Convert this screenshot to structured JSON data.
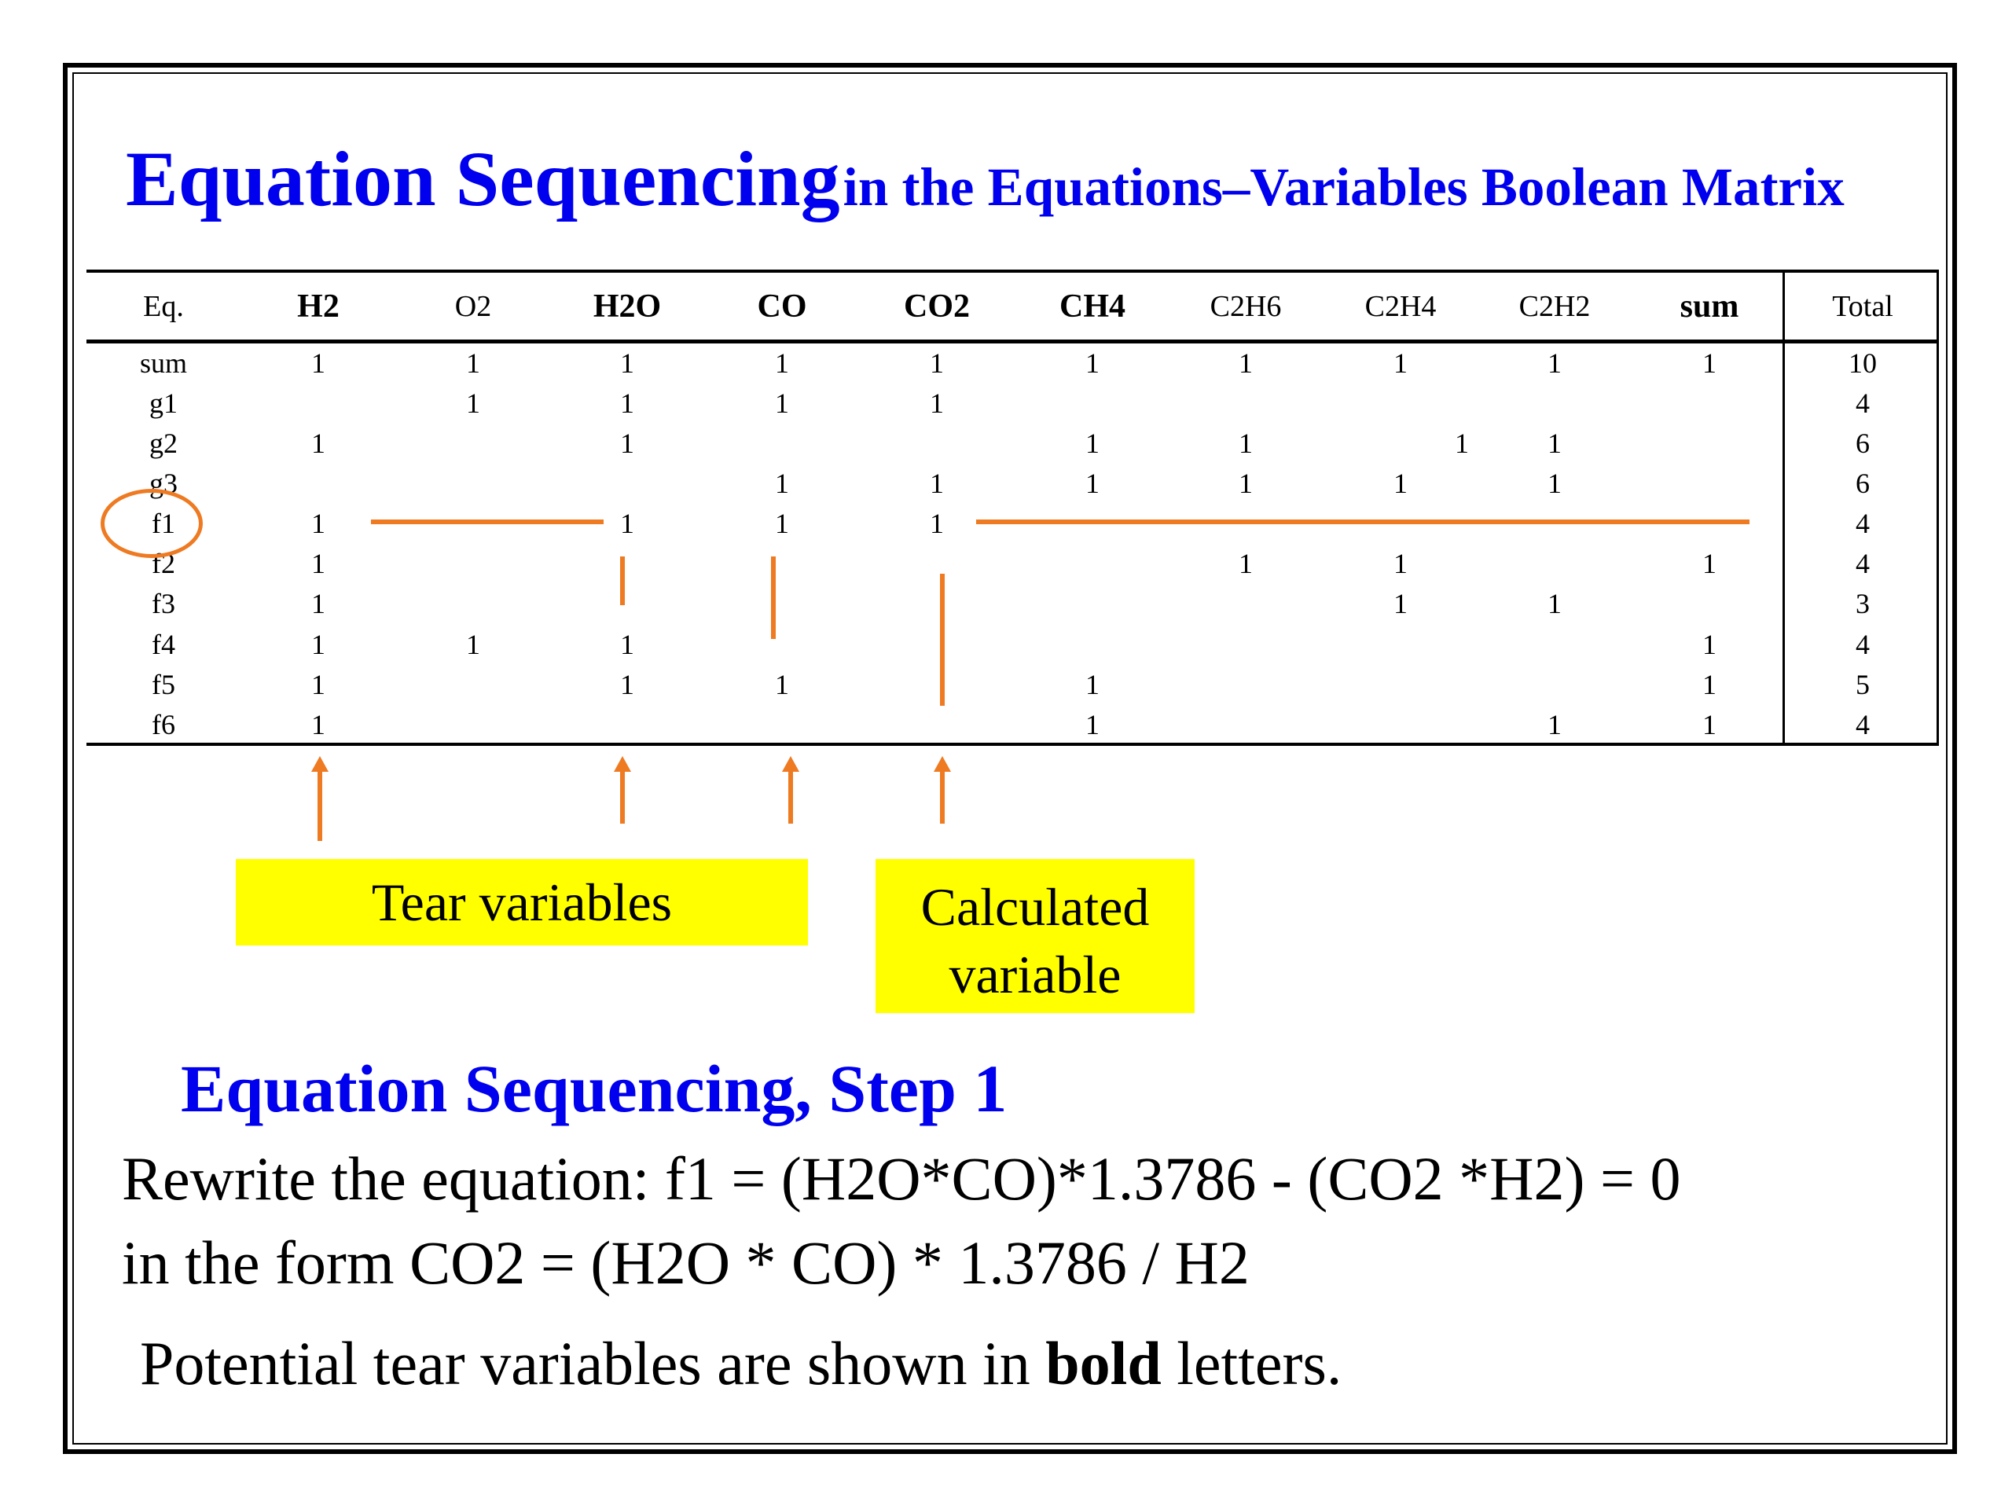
{
  "title": {
    "main": "Equation Sequencing",
    "rest": "in the Equations–Variables Boolean Matrix"
  },
  "table": {
    "columns": [
      {
        "label": "Eq.",
        "bold": false
      },
      {
        "label": "H2",
        "bold": true
      },
      {
        "label": "O2",
        "bold": false
      },
      {
        "label": "H2O",
        "bold": true
      },
      {
        "label": "CO",
        "bold": true
      },
      {
        "label": "CO2",
        "bold": true
      },
      {
        "label": "CH4",
        "bold": true
      },
      {
        "label": "C2H6",
        "bold": false
      },
      {
        "label": "C2H4",
        "bold": false
      },
      {
        "label": "C2H2",
        "bold": false
      },
      {
        "label": "sum",
        "bold": true
      },
      {
        "label": "Total",
        "bold": false
      }
    ],
    "rows": [
      {
        "eq": "sum",
        "cells": [
          "1",
          "1",
          "1",
          "1",
          "1",
          "1",
          "1",
          "1",
          "1",
          "1"
        ],
        "total": "10"
      },
      {
        "eq": "g1",
        "cells": [
          "",
          "1",
          "1",
          "1",
          "1",
          "",
          "",
          "",
          "",
          ""
        ],
        "total": "4"
      },
      {
        "eq": "g2",
        "cells": [
          "1",
          "",
          "1",
          "",
          "",
          "1",
          "1",
          "1",
          "1",
          ""
        ],
        "total": "6"
      },
      {
        "eq": "g3",
        "cells": [
          "",
          "",
          "",
          "1",
          "1",
          "1",
          "1",
          "1",
          "1",
          ""
        ],
        "total": "6"
      },
      {
        "eq": "f1",
        "cells": [
          "1",
          "",
          "1",
          "1",
          "1",
          "",
          "",
          "",
          "",
          ""
        ],
        "total": "4"
      },
      {
        "eq": "f2",
        "cells": [
          "1",
          "",
          "",
          "",
          "",
          "",
          "1",
          "1",
          "",
          "1"
        ],
        "total": "4"
      },
      {
        "eq": "f3",
        "cells": [
          "1",
          "",
          "",
          "",
          "",
          "",
          "",
          "1",
          "1",
          ""
        ],
        "total": "3"
      },
      {
        "eq": "f4",
        "cells": [
          "1",
          "1",
          "1",
          "",
          "",
          "",
          "",
          "",
          "",
          "1"
        ],
        "total": "4"
      },
      {
        "eq": "f5",
        "cells": [
          "1",
          "",
          "1",
          "1",
          "",
          "1",
          "",
          "",
          "",
          "1"
        ],
        "total": "5"
      },
      {
        "eq": "f6",
        "cells": [
          "1",
          "",
          "",
          "",
          "",
          "1",
          "",
          "",
          "1",
          "1"
        ],
        "total": "4"
      }
    ]
  },
  "callouts": {
    "tear": "Tear variables",
    "calc_line1": "Calculated",
    "calc_line2": "variable"
  },
  "subtitle": "Equation Sequencing, Step 1",
  "body": {
    "line1": "Rewrite the equation: f1 = (H2O*CO)*1.3786 - (CO2 *H2) = 0",
    "line2": "in the form CO2 = (H2O * CO) * 1.3786 / H2",
    "line3_pre": "Potential tear variables are shown in ",
    "line3_bold": "bold",
    "line3_post": " letters."
  },
  "colors": {
    "title": "#0000ee",
    "highlight": "#ee7a22",
    "callout_bg": "#ffff00"
  }
}
